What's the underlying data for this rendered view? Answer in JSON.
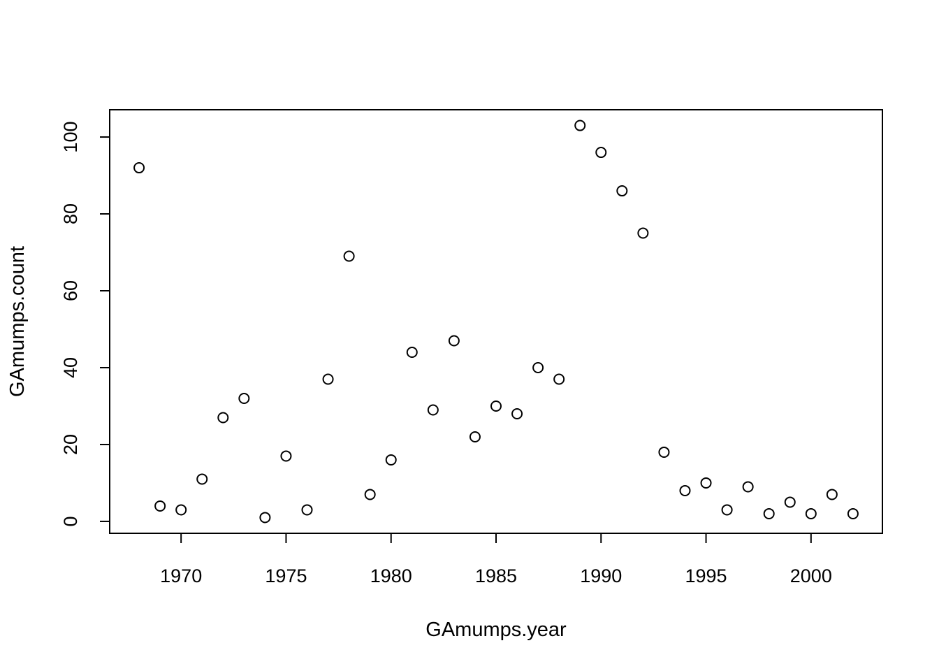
{
  "chart_data": {
    "type": "scatter",
    "title": "",
    "xlabel": "GAmumps.year",
    "ylabel": "GAmumps.count",
    "xlim": [
      1966.6,
      2003.4
    ],
    "ylim": [
      -3.1,
      107.1
    ],
    "xticks": [
      1970,
      1975,
      1980,
      1985,
      1990,
      1995,
      2000
    ],
    "yticks": [
      0,
      20,
      40,
      60,
      80,
      100
    ],
    "grid": false,
    "legend": "none",
    "marker": "open-circle",
    "x": [
      1968,
      1969,
      1970,
      1971,
      1972,
      1973,
      1974,
      1975,
      1976,
      1977,
      1978,
      1979,
      1980,
      1981,
      1982,
      1983,
      1984,
      1985,
      1986,
      1987,
      1988,
      1989,
      1990,
      1991,
      1992,
      1993,
      1994,
      1995,
      1996,
      1997,
      1998,
      1999,
      2000,
      2001,
      2002
    ],
    "y": [
      92,
      4,
      3,
      11,
      27,
      32,
      1,
      17,
      3,
      37,
      69,
      7,
      16,
      44,
      29,
      47,
      22,
      30,
      28,
      40,
      37,
      103,
      96,
      86,
      75,
      18,
      8,
      10,
      3,
      9,
      2,
      5,
      2,
      7,
      2
    ]
  }
}
